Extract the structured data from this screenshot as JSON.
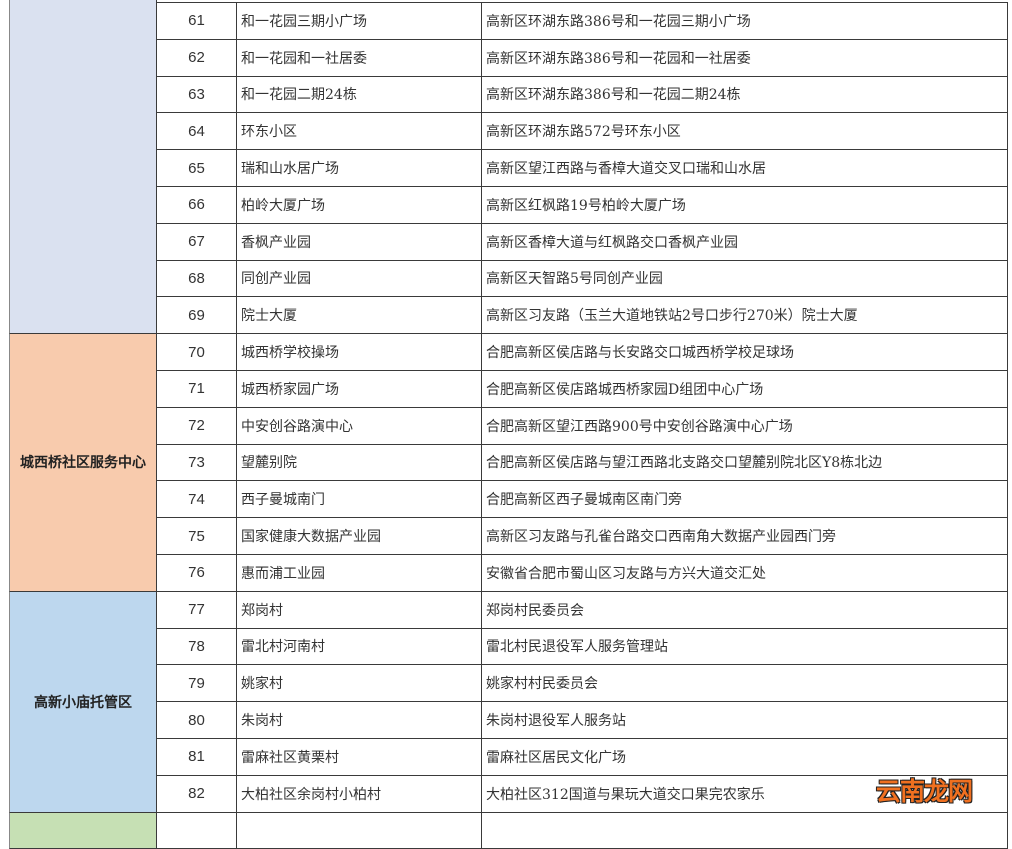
{
  "groups": [
    {
      "name": "",
      "color": "#dae1f0",
      "rows": [
        {
          "no": "61",
          "site": "和一花园三期小广场",
          "address": "高新区环湖东路386号和一花园三期小广场"
        },
        {
          "no": "62",
          "site": "和一花园和一社居委",
          "address": "高新区环湖东路386号和一花园和一社居委"
        },
        {
          "no": "63",
          "site": "和一花园二期24栋",
          "address": "高新区环湖东路386号和一花园二期24栋"
        },
        {
          "no": "64",
          "site": "环东小区",
          "address": "高新区环湖东路572号环东小区"
        },
        {
          "no": "65",
          "site": "瑞和山水居广场",
          "address": "高新区望江西路与香樟大道交叉口瑞和山水居"
        },
        {
          "no": "66",
          "site": "柏岭大厦广场",
          "address": "高新区红枫路19号柏岭大厦广场"
        },
        {
          "no": "67",
          "site": "香枫产业园",
          "address": "高新区香樟大道与红枫路交口香枫产业园"
        },
        {
          "no": "68",
          "site": "同创产业园",
          "address": "高新区天智路5号同创产业园"
        },
        {
          "no": "69",
          "site": "院士大厦",
          "address": "高新区习友路（玉兰大道地铁站2号口步行270米）院士大厦"
        }
      ]
    },
    {
      "name": "城西桥社区服务中心",
      "color": "#f8cbad",
      "rows": [
        {
          "no": "70",
          "site": "城西桥学校操场",
          "address": "合肥高新区侯店路与长安路交口城西桥学校足球场"
        },
        {
          "no": "71",
          "site": "城西桥家园广场",
          "address": "合肥高新区侯店路城西桥家园D组团中心广场"
        },
        {
          "no": "72",
          "site": "中安创谷路演中心",
          "address": "合肥高新区望江西路900号中安创谷路演中心广场"
        },
        {
          "no": "73",
          "site": "望麓别院",
          "address": "合肥高新区侯店路与望江西路北支路交口望麓别院北区Y8栋北边"
        },
        {
          "no": "74",
          "site": "西子曼城南门",
          "address": "合肥高新区西子曼城南区南门旁"
        },
        {
          "no": "75",
          "site": "国家健康大数据产业园",
          "address": "高新区习友路与孔雀台路交口西南角大数据产业园西门旁"
        },
        {
          "no": "76",
          "site": "惠而浦工业园",
          "address": "安徽省合肥市蜀山区习友路与方兴大道交汇处"
        }
      ]
    },
    {
      "name": "高新小庙托管区",
      "color": "#bdd7ee",
      "rows": [
        {
          "no": "77",
          "site": "郑岗村",
          "address": "郑岗村民委员会"
        },
        {
          "no": "78",
          "site": "雷北村河南村",
          "address": "雷北村民退役军人服务管理站"
        },
        {
          "no": "79",
          "site": "姚家村",
          "address": "姚家村村民委员会"
        },
        {
          "no": "80",
          "site": "朱岗村",
          "address": "朱岗村退役军人服务站"
        },
        {
          "no": "81",
          "site": "雷麻社区黄栗村",
          "address": "雷麻社区居民文化广场"
        },
        {
          "no": "82",
          "site": "大柏社区余岗村小柏村",
          "address": "大柏社区312国道与果玩大道交口果完农家乐"
        }
      ]
    },
    {
      "name": "",
      "color": "#c6e0b4",
      "rows": []
    }
  ],
  "watermark": "云南龙网"
}
